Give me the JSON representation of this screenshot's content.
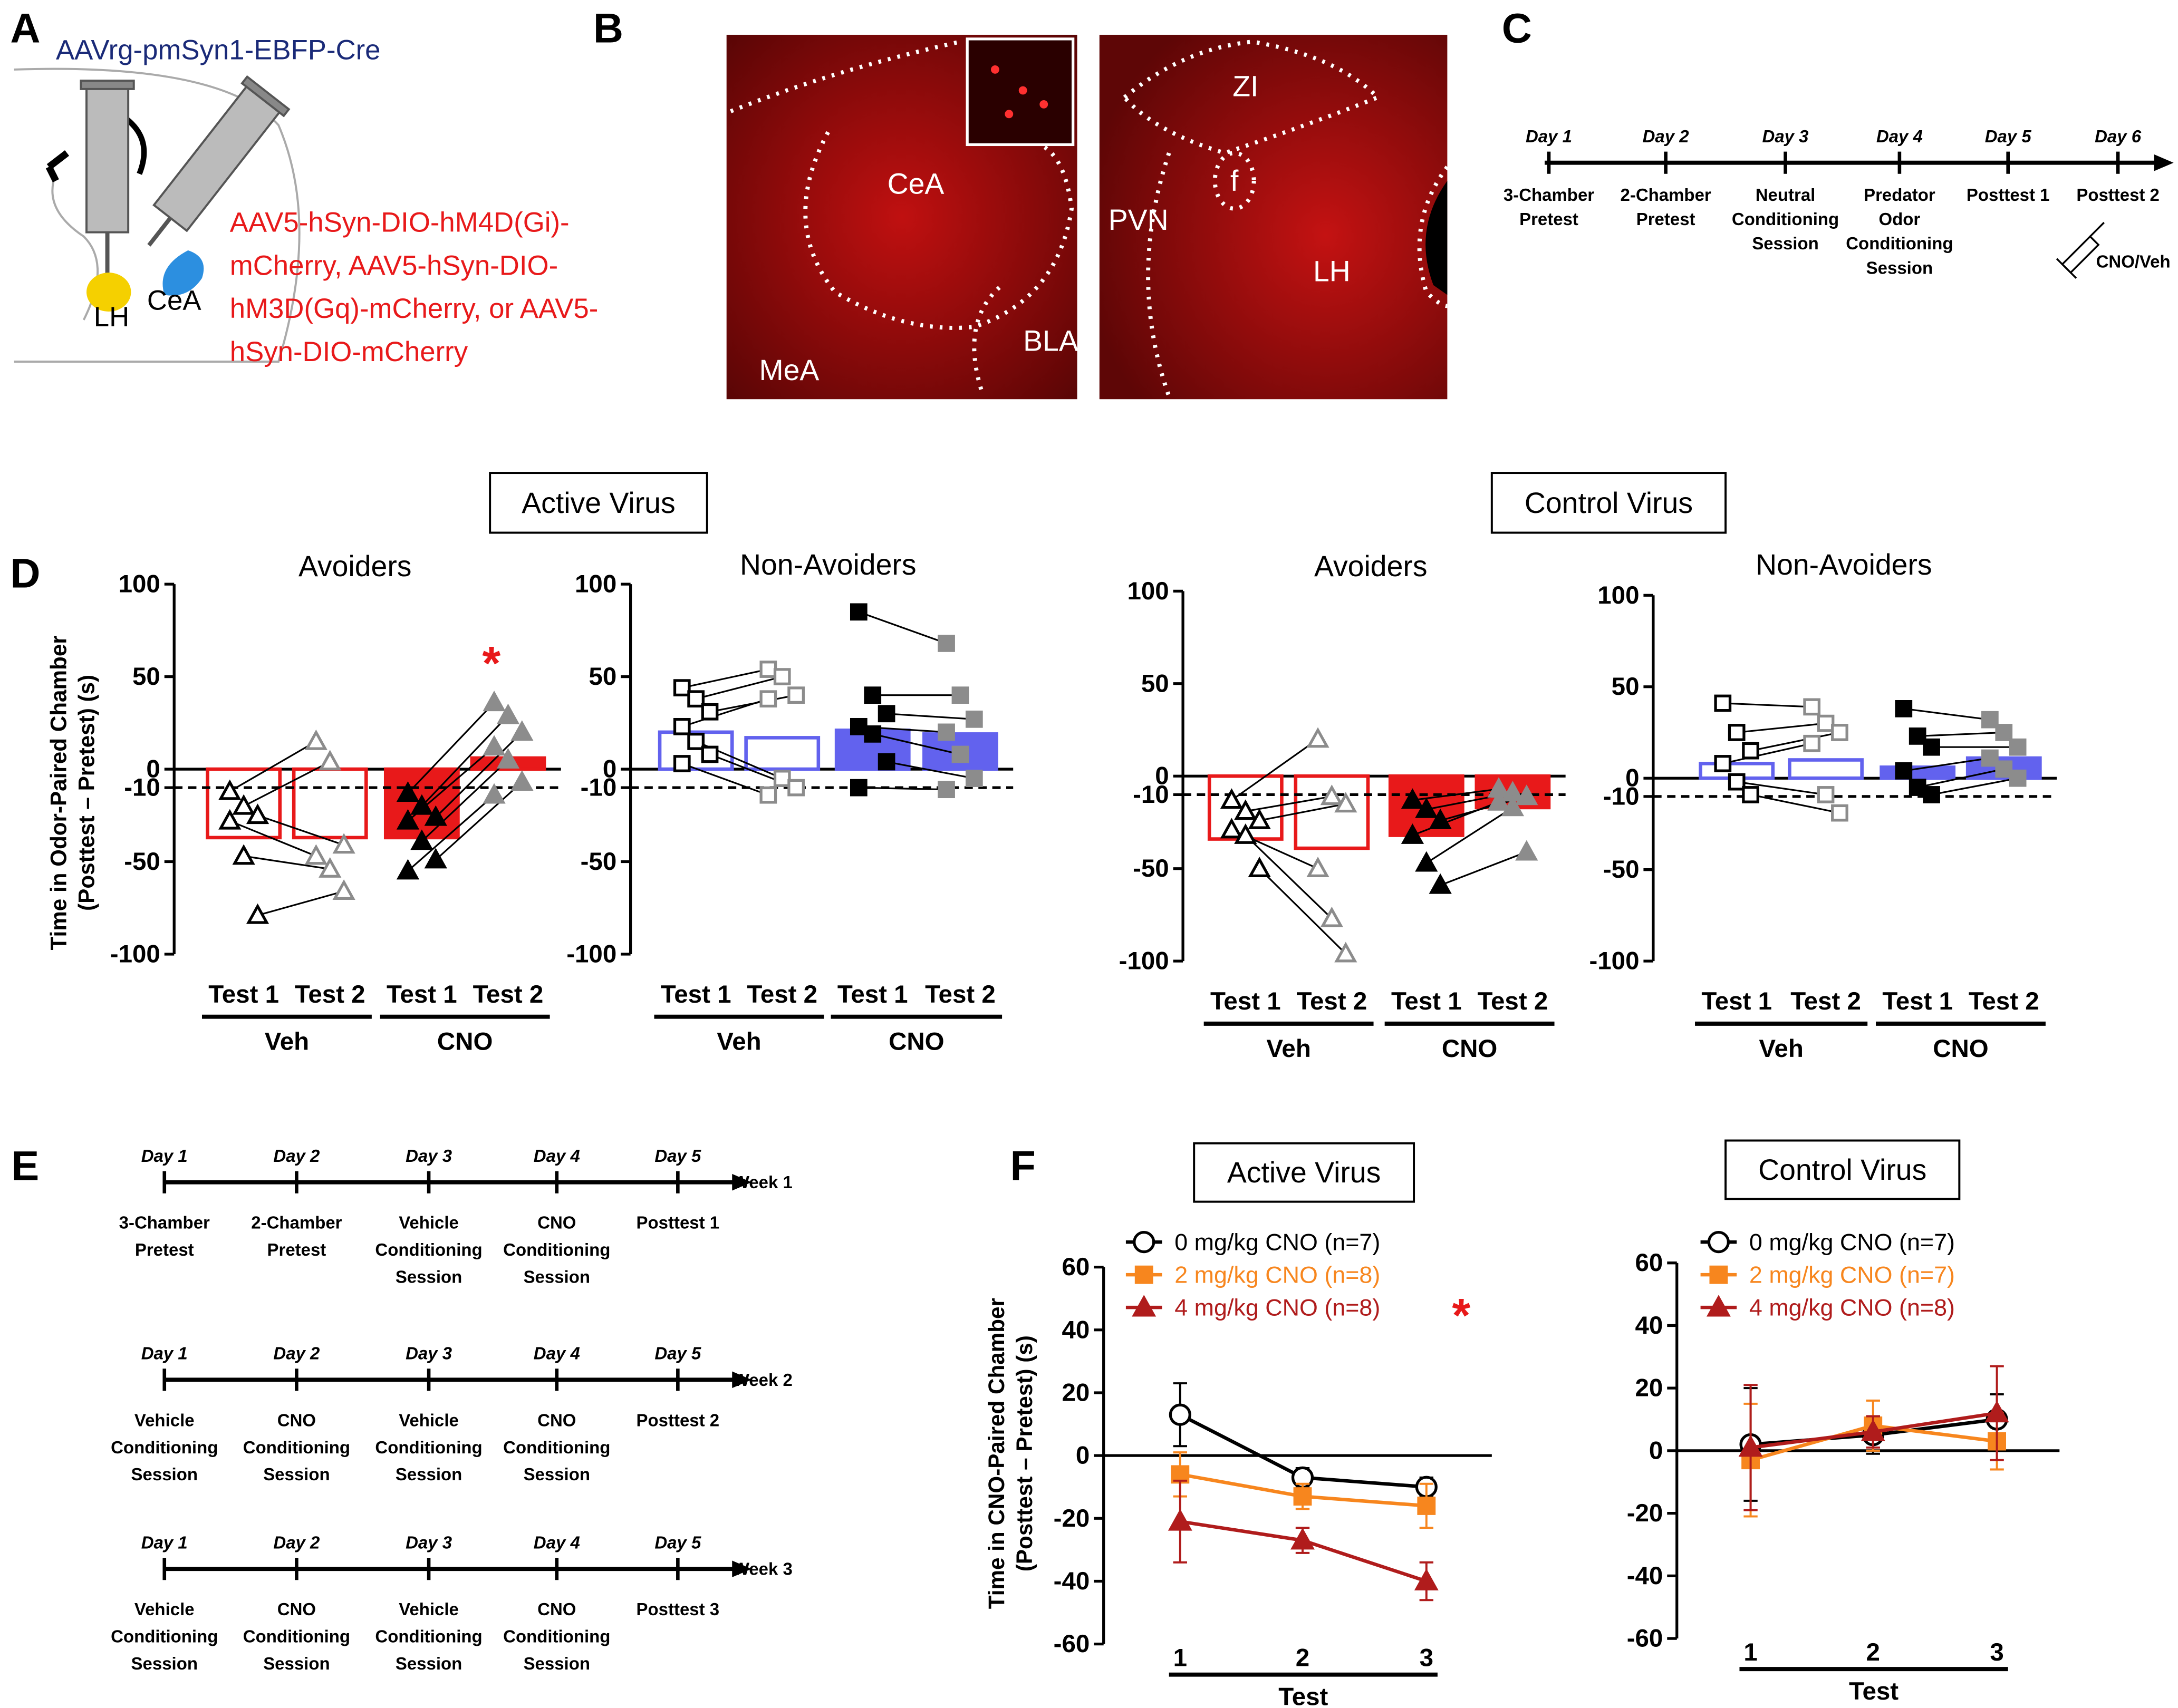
{
  "panel_labels": [
    "A",
    "B",
    "C",
    "D",
    "E",
    "F"
  ],
  "panel_a": {
    "retrograde_virus": "AAVrg-pmSyn1-EBFP-Cre",
    "dreadd_virus": [
      "AAV5-hSyn-DIO-hM4D(Gi)-",
      "mCherry, AAV5-hSyn-DIO-",
      "hM3D(Gq)-mCherry, or AAV5-",
      "hSyn-DIO-mCherry"
    ],
    "regions": [
      "LH",
      "CeA"
    ]
  },
  "panel_b": {
    "left_regions": [
      "CeA",
      "BLA",
      "MeA"
    ],
    "right_regions": [
      "ZI",
      "f",
      "PVN",
      "LH"
    ]
  },
  "panel_c": {
    "days": [
      "Day 1",
      "Day 2",
      "Day 3",
      "Day 4",
      "Day 5",
      "Day 6"
    ],
    "events": [
      [
        "3-Chamber",
        "Pretest"
      ],
      [
        "2-Chamber",
        "Pretest"
      ],
      [
        "Neutral",
        "Conditioning",
        "Session"
      ],
      [
        "Predator",
        "Odor",
        "Conditioning",
        "Session"
      ],
      [
        "Posttest 1"
      ],
      [
        "Posttest 2"
      ]
    ],
    "injection": "CNO/Veh"
  },
  "panel_d": {
    "headers": [
      "Active Virus",
      "Control Virus"
    ]
  },
  "panel_e": {
    "weeks": [
      {
        "label": "Week 1",
        "days": [
          "Day 1",
          "Day 2",
          "Day 3",
          "Day 4",
          "Day 5"
        ],
        "events": [
          [
            "3-Chamber",
            "Pretest"
          ],
          [
            "2-Chamber",
            "Pretest"
          ],
          [
            "Vehicle",
            "Conditioning",
            "Session"
          ],
          [
            "CNO",
            "Conditioning",
            "Session"
          ],
          [
            "Posttest 1"
          ]
        ]
      },
      {
        "label": "Week 2",
        "days": [
          "Day 1",
          "Day 2",
          "Day 3",
          "Day 4",
          "Day 5"
        ],
        "events": [
          [
            "Vehicle",
            "Conditioning",
            "Session"
          ],
          [
            "CNO",
            "Conditioning",
            "Session"
          ],
          [
            "Vehicle",
            "Conditioning",
            "Session"
          ],
          [
            "CNO",
            "Conditioning",
            "Session"
          ],
          [
            "Posttest 2"
          ]
        ]
      },
      {
        "label": "Week 3",
        "days": [
          "Day 1",
          "Day 2",
          "Day 3",
          "Day 4",
          "Day 5"
        ],
        "events": [
          [
            "Vehicle",
            "Conditioning",
            "Session"
          ],
          [
            "CNO",
            "Conditioning",
            "Session"
          ],
          [
            "Vehicle",
            "Conditioning",
            "Session"
          ],
          [
            "CNO",
            "Conditioning",
            "Session"
          ],
          [
            "Posttest 3"
          ]
        ]
      }
    ]
  },
  "chart_data": [
    {
      "type": "bar",
      "title": "Avoiders",
      "ylabel": [
        "Time in Odor-Paired Chamber",
        "(Posttest – Pretest) (s)"
      ],
      "categories": [
        "Test 1",
        "Test 2",
        "Test 1",
        "Test 2"
      ],
      "groups": [
        "Veh",
        "CNO"
      ],
      "values": [
        -37,
        -37,
        -37,
        6
      ],
      "points": [
        [
          -12,
          -20,
          -25,
          -28,
          -47,
          -79
        ],
        [
          15,
          4,
          -41,
          -47,
          -54,
          -66
        ],
        [
          -13,
          -20,
          -26,
          -28,
          -39,
          -49,
          -55
        ],
        [
          36,
          29,
          20,
          12,
          5,
          -7,
          -14
        ]
      ],
      "bar_color": "#e8191a",
      "point_colors": [
        "#000000",
        "#8c8c8c",
        "#000000",
        "#8c8c8c"
      ],
      "filled": [
        false,
        false,
        true,
        true
      ],
      "marker": "triangle",
      "ylim": [
        -100,
        100
      ],
      "yticks": [
        -100,
        -50,
        -10,
        0,
        50,
        100
      ],
      "reference_line": -10,
      "annotation": "*"
    },
    {
      "type": "bar",
      "title": "Non-Avoiders",
      "categories": [
        "Test 1",
        "Test 2",
        "Test 1",
        "Test 2"
      ],
      "groups": [
        "Veh",
        "CNO"
      ],
      "values": [
        20,
        17,
        21,
        19
      ],
      "points": [
        [
          44,
          38,
          31,
          23,
          15,
          8,
          3
        ],
        [
          54,
          50,
          40,
          38,
          -5,
          -10,
          -14
        ],
        [
          85,
          40,
          30,
          23,
          19,
          4,
          -10
        ],
        [
          68,
          40,
          27,
          20,
          8,
          -5,
          -11
        ]
      ],
      "bar_color": "#6262ee",
      "point_colors": [
        "#000000",
        "#8c8c8c",
        "#000000",
        "#8c8c8c"
      ],
      "filled": [
        false,
        false,
        true,
        true
      ],
      "marker": "square",
      "ylim": [
        -100,
        100
      ],
      "yticks": [
        -100,
        -50,
        -10,
        0,
        50,
        100
      ],
      "reference_line": -10
    },
    {
      "type": "bar",
      "title": "Avoiders",
      "categories": [
        "Test 1",
        "Test 2",
        "Test 1",
        "Test 2"
      ],
      "groups": [
        "Veh",
        "CNO"
      ],
      "values": [
        -34,
        -39,
        -32,
        -17
      ],
      "points": [
        [
          -13,
          -19,
          -24,
          -29,
          -32,
          -50
        ],
        [
          20,
          -11,
          -15,
          -50,
          -77,
          -96
        ],
        [
          -13,
          -18,
          -24,
          -32,
          -47,
          -59
        ],
        [
          -7,
          -9,
          -11,
          -14,
          -17,
          -41
        ]
      ],
      "bar_color": "#e8191a",
      "point_colors": [
        "#000000",
        "#8c8c8c",
        "#000000",
        "#8c8c8c"
      ],
      "filled": [
        false,
        false,
        true,
        true
      ],
      "marker": "triangle",
      "ylim": [
        -100,
        100
      ],
      "yticks": [
        -100,
        -50,
        -10,
        0,
        50,
        100
      ],
      "reference_line": -10
    },
    {
      "type": "bar",
      "title": "Non-Avoiders",
      "categories": [
        "Test 1",
        "Test 2",
        "Test 1",
        "Test 2"
      ],
      "groups": [
        "Veh",
        "CNO"
      ],
      "values": [
        8,
        10,
        6,
        11
      ],
      "points": [
        [
          41,
          25,
          15,
          8,
          -2,
          -9
        ],
        [
          39,
          30,
          25,
          19,
          -9,
          -19
        ],
        [
          38,
          23,
          17,
          4,
          -5,
          -9
        ],
        [
          32,
          25,
          17,
          11,
          5,
          0
        ]
      ],
      "bar_color": "#6262ee",
      "point_colors": [
        "#000000",
        "#8c8c8c",
        "#000000",
        "#8c8c8c"
      ],
      "filled": [
        false,
        false,
        true,
        true
      ],
      "marker": "square",
      "ylim": [
        -100,
        100
      ],
      "yticks": [
        -100,
        -50,
        -10,
        0,
        50,
        100
      ],
      "reference_line": -10
    },
    {
      "type": "line",
      "title": "Active Virus",
      "ylabel": [
        "Time in CNO-Paired Chamber",
        "(Posttest – Pretest) (s)"
      ],
      "xlabel": "Test",
      "categories": [
        "1",
        "2",
        "3"
      ],
      "ylim": [
        -60,
        60
      ],
      "yticks": [
        -60,
        -40,
        -20,
        0,
        20,
        40,
        60
      ],
      "series": [
        {
          "name": "0 mg/kg CNO (n=7)",
          "color": "#000000",
          "marker": "circle",
          "filled": false,
          "values": [
            13,
            -7,
            -10
          ],
          "errors": [
            10,
            3,
            3
          ]
        },
        {
          "name": "2 mg/kg CNO (n=8)",
          "color": "#f7861e",
          "marker": "square",
          "filled": true,
          "values": [
            -6,
            -13,
            -16
          ],
          "errors": [
            7,
            4,
            7
          ]
        },
        {
          "name": "4 mg/kg CNO (n=8)",
          "color": "#b01c1c",
          "marker": "triangle",
          "filled": true,
          "values": [
            -21,
            -27,
            -40
          ],
          "errors": [
            13,
            4,
            6
          ]
        }
      ],
      "annotation": "*"
    },
    {
      "type": "line",
      "title": "Control Virus",
      "xlabel": "Test",
      "categories": [
        "1",
        "2",
        "3"
      ],
      "ylim": [
        -60,
        60
      ],
      "yticks": [
        -60,
        -40,
        -20,
        0,
        20,
        40,
        60
      ],
      "series": [
        {
          "name": "0 mg/kg CNO (n=7)",
          "color": "#000000",
          "marker": "circle",
          "filled": false,
          "values": [
            2,
            5,
            10
          ],
          "errors": [
            18,
            6,
            8
          ]
        },
        {
          "name": "2 mg/kg CNO (n=7)",
          "color": "#f7861e",
          "marker": "square",
          "filled": true,
          "values": [
            -3,
            8,
            3
          ],
          "errors": [
            18,
            8,
            9
          ]
        },
        {
          "name": "4 mg/kg CNO (n=8)",
          "color": "#b01c1c",
          "marker": "triangle",
          "filled": true,
          "values": [
            1,
            6,
            12
          ],
          "errors": [
            20,
            5,
            15
          ]
        }
      ]
    }
  ]
}
